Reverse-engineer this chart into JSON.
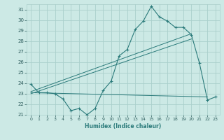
{
  "xlabel": "Humidex (Indice chaleur)",
  "xlim": [
    -0.5,
    23.5
  ],
  "ylim": [
    21,
    31.5
  ],
  "yticks": [
    21,
    22,
    23,
    24,
    25,
    26,
    27,
    28,
    29,
    30,
    31
  ],
  "xticks": [
    0,
    1,
    2,
    3,
    4,
    5,
    6,
    7,
    8,
    9,
    10,
    11,
    12,
    13,
    14,
    15,
    16,
    17,
    18,
    19,
    20,
    21,
    22,
    23
  ],
  "bg_color": "#cce9e5",
  "grid_color": "#aacfcb",
  "line_color": "#2a7a7a",
  "main_line": {
    "x": [
      0,
      1,
      2,
      3,
      4,
      5,
      6,
      7,
      8,
      9,
      10,
      11,
      12,
      13,
      14,
      15,
      16,
      17,
      18,
      19,
      20,
      21,
      22,
      23
    ],
    "y": [
      23.9,
      23.1,
      23.1,
      23.0,
      22.5,
      21.4,
      21.6,
      21.0,
      21.6,
      23.3,
      24.2,
      26.6,
      27.2,
      29.1,
      29.9,
      31.3,
      30.3,
      29.9,
      29.3,
      29.3,
      28.6,
      25.9,
      22.4,
      22.7
    ]
  },
  "line_flat": {
    "x": [
      0,
      22
    ],
    "y": [
      23.1,
      22.7
    ]
  },
  "line_upper": {
    "x": [
      0,
      20
    ],
    "y": [
      23.2,
      28.7
    ]
  },
  "line_lower": {
    "x": [
      0,
      20
    ],
    "y": [
      23.0,
      28.2
    ]
  }
}
